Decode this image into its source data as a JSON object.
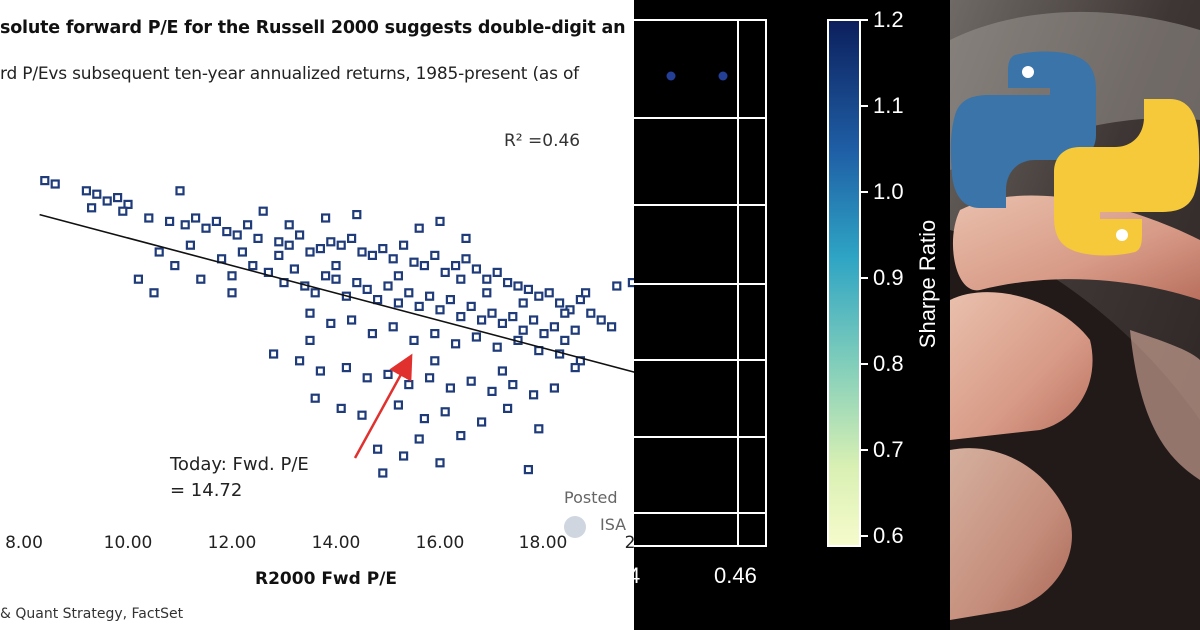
{
  "scatter_panel": {
    "title": "solute forward  P/E for the Russell 2000 suggests double-digit an",
    "subtitle": "rd P/Evs subsequent ten-year annualized returns, 1985-present (as of",
    "r_squared": "R² =0.46",
    "annotation_line1": "Today: Fwd. P/E",
    "annotation_line2": "= 14.72",
    "watermark_posted": "Posted",
    "watermark_isa": "ISA",
    "source": "& Quant Strategy, FactSet"
  },
  "colorbar_panel": {
    "label": "Sharpe Ratio",
    "ticks": [
      "1.2",
      "1.1",
      "1.0",
      "0.9",
      "0.8",
      "0.7",
      "0.6"
    ],
    "x_tick_partial": "4",
    "x_tick": "0.46"
  },
  "logo_panel": {
    "logo_name": "python-logo"
  },
  "colors": {
    "marker": "#1f3b7a",
    "trend": "#111111",
    "arrow": "#e0312e",
    "cmap_top": "#0c1f5c",
    "cmap_mid": "#2ea4c4",
    "cmap_bottom": "#f6fbcc",
    "python_blue": "#3a74a8",
    "python_yellow": "#f5c93a"
  },
  "chart_data": [
    {
      "type": "scatter",
      "title": "solute forward  P/E for the Russell 2000 suggests double-digit an",
      "subtitle": "rd P/Evs subsequent ten-year annualized returns, 1985-present (as of",
      "xlabel": "R2000 Fwd P/E",
      "ylabel": "",
      "xlim": [
        7.6,
        20.0
      ],
      "ylim": [
        0.0,
        1.0
      ],
      "xticks": [
        "8.00",
        "10.00",
        "12.00",
        "14.00",
        "16.00",
        "18.00",
        "2"
      ],
      "r_squared": "R² =0.46",
      "trend_line": {
        "x": [
          8.3,
          19.9
        ],
        "y": [
          0.81,
          0.34
        ]
      },
      "annotation": {
        "text": "Today: Fwd. P/E = 14.72",
        "x": 14.72
      },
      "points": [
        [
          8.4,
          0.91
        ],
        [
          8.6,
          0.9
        ],
        [
          9.2,
          0.88
        ],
        [
          9.4,
          0.87
        ],
        [
          9.6,
          0.85
        ],
        [
          9.8,
          0.86
        ],
        [
          10.0,
          0.84
        ],
        [
          9.3,
          0.83
        ],
        [
          9.9,
          0.82
        ],
        [
          11.0,
          0.88
        ],
        [
          10.4,
          0.8
        ],
        [
          10.8,
          0.79
        ],
        [
          11.1,
          0.78
        ],
        [
          11.3,
          0.8
        ],
        [
          11.5,
          0.77
        ],
        [
          11.7,
          0.79
        ],
        [
          11.9,
          0.76
        ],
        [
          12.1,
          0.75
        ],
        [
          12.3,
          0.78
        ],
        [
          12.5,
          0.74
        ],
        [
          12.6,
          0.82
        ],
        [
          12.9,
          0.73
        ],
        [
          13.1,
          0.72
        ],
        [
          13.3,
          0.75
        ],
        [
          13.5,
          0.7
        ],
        [
          13.7,
          0.71
        ],
        [
          13.9,
          0.73
        ],
        [
          14.1,
          0.72
        ],
        [
          14.3,
          0.74
        ],
        [
          14.5,
          0.7
        ],
        [
          14.7,
          0.69
        ],
        [
          14.9,
          0.71
        ],
        [
          15.1,
          0.68
        ],
        [
          15.3,
          0.72
        ],
        [
          15.5,
          0.67
        ],
        [
          15.7,
          0.66
        ],
        [
          15.9,
          0.69
        ],
        [
          16.1,
          0.64
        ],
        [
          16.3,
          0.66
        ],
        [
          16.5,
          0.68
        ],
        [
          16.7,
          0.65
        ],
        [
          16.9,
          0.62
        ],
        [
          17.1,
          0.64
        ],
        [
          17.3,
          0.61
        ],
        [
          17.5,
          0.6
        ],
        [
          17.7,
          0.59
        ],
        [
          17.9,
          0.57
        ],
        [
          18.1,
          0.58
        ],
        [
          18.3,
          0.55
        ],
        [
          18.5,
          0.53
        ],
        [
          18.7,
          0.56
        ],
        [
          18.9,
          0.52
        ],
        [
          19.1,
          0.5
        ],
        [
          19.3,
          0.48
        ],
        [
          10.6,
          0.7
        ],
        [
          10.9,
          0.66
        ],
        [
          11.4,
          0.62
        ],
        [
          11.8,
          0.68
        ],
        [
          12.0,
          0.63
        ],
        [
          12.4,
          0.66
        ],
        [
          12.7,
          0.64
        ],
        [
          13.0,
          0.61
        ],
        [
          13.2,
          0.65
        ],
        [
          13.4,
          0.6
        ],
        [
          13.6,
          0.58
        ],
        [
          13.8,
          0.63
        ],
        [
          14.0,
          0.62
        ],
        [
          14.2,
          0.57
        ],
        [
          14.4,
          0.61
        ],
        [
          14.6,
          0.59
        ],
        [
          14.8,
          0.56
        ],
        [
          15.0,
          0.6
        ],
        [
          15.2,
          0.55
        ],
        [
          15.4,
          0.58
        ],
        [
          15.6,
          0.54
        ],
        [
          15.8,
          0.57
        ],
        [
          16.0,
          0.53
        ],
        [
          16.2,
          0.56
        ],
        [
          16.4,
          0.51
        ],
        [
          16.6,
          0.54
        ],
        [
          16.8,
          0.5
        ],
        [
          17.0,
          0.52
        ],
        [
          17.2,
          0.49
        ],
        [
          17.4,
          0.51
        ],
        [
          17.6,
          0.47
        ],
        [
          17.8,
          0.5
        ],
        [
          18.0,
          0.46
        ],
        [
          18.2,
          0.48
        ],
        [
          18.4,
          0.44
        ],
        [
          18.6,
          0.47
        ],
        [
          13.5,
          0.52
        ],
        [
          13.9,
          0.49
        ],
        [
          14.3,
          0.5
        ],
        [
          14.7,
          0.46
        ],
        [
          15.1,
          0.48
        ],
        [
          15.5,
          0.44
        ],
        [
          15.9,
          0.46
        ],
        [
          16.3,
          0.43
        ],
        [
          16.7,
          0.45
        ],
        [
          17.1,
          0.42
        ],
        [
          17.5,
          0.44
        ],
        [
          17.9,
          0.41
        ],
        [
          18.3,
          0.4
        ],
        [
          18.7,
          0.38
        ],
        [
          12.8,
          0.4
        ],
        [
          13.3,
          0.38
        ],
        [
          13.7,
          0.35
        ],
        [
          14.2,
          0.36
        ],
        [
          14.6,
          0.33
        ],
        [
          15.0,
          0.34
        ],
        [
          15.4,
          0.31
        ],
        [
          15.8,
          0.33
        ],
        [
          16.2,
          0.3
        ],
        [
          16.6,
          0.32
        ],
        [
          17.0,
          0.29
        ],
        [
          17.4,
          0.31
        ],
        [
          17.8,
          0.28
        ],
        [
          18.2,
          0.3
        ],
        [
          13.6,
          0.27
        ],
        [
          14.1,
          0.24
        ],
        [
          14.5,
          0.22
        ],
        [
          15.2,
          0.25
        ],
        [
          15.7,
          0.21
        ],
        [
          16.1,
          0.23
        ],
        [
          16.8,
          0.2
        ],
        [
          17.3,
          0.24
        ],
        [
          17.9,
          0.18
        ],
        [
          14.8,
          0.12
        ],
        [
          15.6,
          0.15
        ],
        [
          16.4,
          0.16
        ],
        [
          14.9,
          0.05
        ],
        [
          15.3,
          0.1
        ],
        [
          16.0,
          0.08
        ],
        [
          17.7,
          0.06
        ],
        [
          19.4,
          0.6
        ],
        [
          19.7,
          0.61
        ],
        [
          19.9,
          0.62
        ],
        [
          10.2,
          0.62
        ],
        [
          10.5,
          0.58
        ],
        [
          11.2,
          0.72
        ],
        [
          12.2,
          0.7
        ],
        [
          12.9,
          0.69
        ],
        [
          13.1,
          0.78
        ],
        [
          13.8,
          0.8
        ],
        [
          14.4,
          0.81
        ],
        [
          15.6,
          0.77
        ],
        [
          16.0,
          0.79
        ],
        [
          16.5,
          0.74
        ],
        [
          14.0,
          0.66
        ],
        [
          15.2,
          0.63
        ],
        [
          16.9,
          0.58
        ],
        [
          17.6,
          0.55
        ],
        [
          18.4,
          0.52
        ],
        [
          18.8,
          0.58
        ],
        [
          12.0,
          0.58
        ],
        [
          13.5,
          0.44
        ],
        [
          15.9,
          0.38
        ],
        [
          17.2,
          0.35
        ],
        [
          18.6,
          0.36
        ],
        [
          16.4,
          0.62
        ]
      ]
    },
    {
      "type": "scatter",
      "partial": true,
      "xticks": [
        "4",
        "0.46"
      ],
      "points": [
        {
          "x_frac": 0.22,
          "y": 1.2,
          "sharpe": 1.18
        },
        {
          "x_frac": 0.55,
          "y": 1.2,
          "sharpe": 1.18
        }
      ],
      "colorbar": {
        "label": "Sharpe Ratio",
        "min": 0.6,
        "max": 1.2,
        "ticks": [
          1.2,
          1.1,
          1.0,
          0.9,
          0.8,
          0.7,
          0.6
        ]
      }
    }
  ]
}
